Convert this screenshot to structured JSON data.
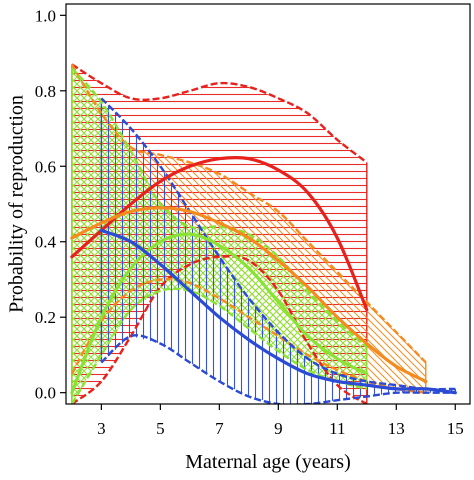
{
  "chart_data": {
    "type": "line",
    "title": "",
    "xlabel": "Maternal age (years)",
    "ylabel": "Probability of reproduction",
    "xlim": [
      1.8,
      15.5
    ],
    "ylim": [
      -0.03,
      1.03
    ],
    "xticks": [
      3,
      5,
      7,
      9,
      11,
      13,
      15
    ],
    "yticks": [
      0.0,
      0.2,
      0.4,
      0.6,
      0.8,
      1.0
    ],
    "xtick_labels": [
      "3",
      "5",
      "7",
      "9",
      "11",
      "13",
      "15"
    ],
    "ytick_labels": [
      "0.0",
      "0.2",
      "0.4",
      "0.6",
      "0.8",
      "1.0"
    ],
    "grid": false,
    "legend": "none",
    "series": [
      {
        "color": "#e8211c",
        "hatch": "horizontal",
        "mean": [
          [
            2,
            0.36
          ],
          [
            3,
            0.43
          ],
          [
            4,
            0.5
          ],
          [
            5,
            0.56
          ],
          [
            6,
            0.6
          ],
          [
            7,
            0.62
          ],
          [
            8,
            0.62
          ],
          [
            9,
            0.59
          ],
          [
            10,
            0.53
          ],
          [
            11,
            0.41
          ],
          [
            12,
            0.22
          ]
        ],
        "upper": [
          [
            2,
            0.87
          ],
          [
            3,
            0.82
          ],
          [
            4,
            0.78
          ],
          [
            5,
            0.78
          ],
          [
            6,
            0.8
          ],
          [
            7,
            0.82
          ],
          [
            8,
            0.81
          ],
          [
            9,
            0.78
          ],
          [
            10,
            0.74
          ],
          [
            11,
            0.67
          ],
          [
            12,
            0.61
          ]
        ],
        "lower": [
          [
            2,
            -0.03
          ],
          [
            3,
            0.03
          ],
          [
            4,
            0.15
          ],
          [
            5,
            0.28
          ],
          [
            6,
            0.34
          ],
          [
            7,
            0.36
          ],
          [
            8,
            0.35
          ],
          [
            9,
            0.27
          ],
          [
            10,
            0.13
          ],
          [
            11,
            0.02
          ],
          [
            12,
            -0.03
          ]
        ]
      },
      {
        "color": "#f58b1e",
        "hatch": "diagonal-down",
        "mean": [
          [
            2,
            0.41
          ],
          [
            3,
            0.45
          ],
          [
            4,
            0.48
          ],
          [
            5,
            0.49
          ],
          [
            6,
            0.48
          ],
          [
            7,
            0.45
          ],
          [
            8,
            0.41
          ],
          [
            9,
            0.35
          ],
          [
            10,
            0.28
          ],
          [
            11,
            0.2
          ],
          [
            12,
            0.13
          ],
          [
            13,
            0.07
          ],
          [
            14,
            0.03
          ]
        ],
        "upper": [
          [
            2,
            0.87
          ],
          [
            3,
            0.74
          ],
          [
            4,
            0.65
          ],
          [
            5,
            0.63
          ],
          [
            6,
            0.61
          ],
          [
            7,
            0.58
          ],
          [
            8,
            0.53
          ],
          [
            9,
            0.48
          ],
          [
            10,
            0.4
          ],
          [
            11,
            0.32
          ],
          [
            12,
            0.24
          ],
          [
            13,
            0.16
          ],
          [
            14,
            0.08
          ]
        ],
        "lower": [
          [
            2,
            0.05
          ],
          [
            3,
            0.19
          ],
          [
            4,
            0.27
          ],
          [
            5,
            0.3
          ],
          [
            6,
            0.29
          ],
          [
            7,
            0.25
          ],
          [
            8,
            0.2
          ],
          [
            9,
            0.15
          ],
          [
            10,
            0.1
          ],
          [
            11,
            0.06
          ],
          [
            12,
            0.03
          ],
          [
            13,
            0.01
          ],
          [
            14,
            0.0
          ]
        ]
      },
      {
        "color": "#8ae234",
        "hatch": "cross",
        "mean": [
          [
            2,
            0.0
          ],
          [
            3,
            0.2
          ],
          [
            4,
            0.33
          ],
          [
            5,
            0.4
          ],
          [
            6,
            0.42
          ],
          [
            7,
            0.39
          ],
          [
            8,
            0.33
          ],
          [
            9,
            0.24
          ],
          [
            10,
            0.15
          ],
          [
            11,
            0.09
          ],
          [
            12,
            0.05
          ]
        ],
        "upper": [
          [
            2,
            0.86
          ],
          [
            3,
            0.77
          ],
          [
            4,
            0.64
          ],
          [
            5,
            0.5
          ],
          [
            6,
            0.44
          ],
          [
            7,
            0.44
          ],
          [
            8,
            0.42
          ],
          [
            9,
            0.36
          ],
          [
            10,
            0.27
          ],
          [
            11,
            0.19
          ],
          [
            12,
            0.12
          ]
        ],
        "lower": [
          [
            2,
            -0.03
          ],
          [
            3,
            0.1
          ],
          [
            4,
            0.22
          ],
          [
            5,
            0.27
          ],
          [
            6,
            0.27
          ],
          [
            7,
            0.23
          ],
          [
            8,
            0.17
          ],
          [
            9,
            0.11
          ],
          [
            10,
            0.06
          ],
          [
            11,
            0.03
          ],
          [
            12,
            0.01
          ]
        ]
      },
      {
        "color": "#2b4bd6",
        "hatch": "vertical",
        "mean": [
          [
            3,
            0.43
          ],
          [
            4,
            0.4
          ],
          [
            5,
            0.34
          ],
          [
            6,
            0.27
          ],
          [
            7,
            0.2
          ],
          [
            8,
            0.14
          ],
          [
            9,
            0.09
          ],
          [
            10,
            0.05
          ],
          [
            11,
            0.03
          ],
          [
            12,
            0.02
          ],
          [
            13,
            0.01
          ],
          [
            14,
            0.01
          ],
          [
            15,
            0.0
          ]
        ],
        "upper": [
          [
            3,
            0.78
          ],
          [
            4,
            0.7
          ],
          [
            5,
            0.6
          ],
          [
            6,
            0.48
          ],
          [
            7,
            0.36
          ],
          [
            8,
            0.25
          ],
          [
            9,
            0.16
          ],
          [
            10,
            0.09
          ],
          [
            11,
            0.05
          ],
          [
            12,
            0.03
          ],
          [
            13,
            0.02
          ],
          [
            14,
            0.01
          ],
          [
            15,
            0.01
          ]
        ],
        "lower": [
          [
            3,
            0.08
          ],
          [
            4,
            0.15
          ],
          [
            5,
            0.13
          ],
          [
            6,
            0.08
          ],
          [
            7,
            0.03
          ],
          [
            8,
            -0.01
          ],
          [
            9,
            -0.03
          ],
          [
            10,
            -0.03
          ],
          [
            11,
            -0.02
          ],
          [
            12,
            -0.01
          ],
          [
            13,
            0.0
          ],
          [
            14,
            0.0
          ],
          [
            15,
            0.0
          ]
        ]
      }
    ]
  }
}
